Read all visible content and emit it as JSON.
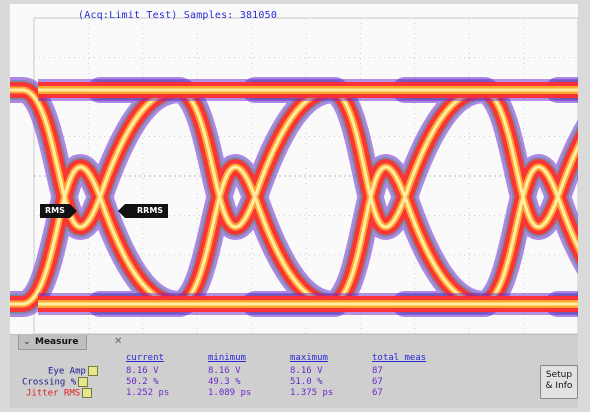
{
  "status": {
    "title": "(Acq:Limit Test) Samples: 381050"
  },
  "markers": {
    "left": "RMS",
    "right": "RRMS"
  },
  "measure": {
    "tab_label": "Measure",
    "close_glyph": "✕",
    "columns": [
      "current",
      "minimum",
      "maximum",
      "total meas"
    ],
    "rows": [
      {
        "label": "Eye Amp",
        "values": [
          "8.16 V",
          "8.16 V",
          "8.16 V",
          "87"
        ]
      },
      {
        "label": "Crossing %",
        "values": [
          "50.2 %",
          "49.3 %",
          "51.0 %",
          "67"
        ]
      },
      {
        "label": "Jitter RMS",
        "values": [
          "1.252 ps",
          "1.089 ps",
          "1.375 ps",
          "67"
        ]
      }
    ]
  },
  "setup_button": {
    "label": "Setup\n& Info"
  },
  "colors": {
    "title_text": "#2a2ad8",
    "jitter_label": "#e02020",
    "values": "#6a2ac8",
    "eye_hot": "#ffe070",
    "eye_mid": "#ff3030",
    "eye_outer": "#6a2ad0"
  },
  "icons": {
    "measure_chevron": "chevron-down-icon",
    "close": "close-icon"
  }
}
